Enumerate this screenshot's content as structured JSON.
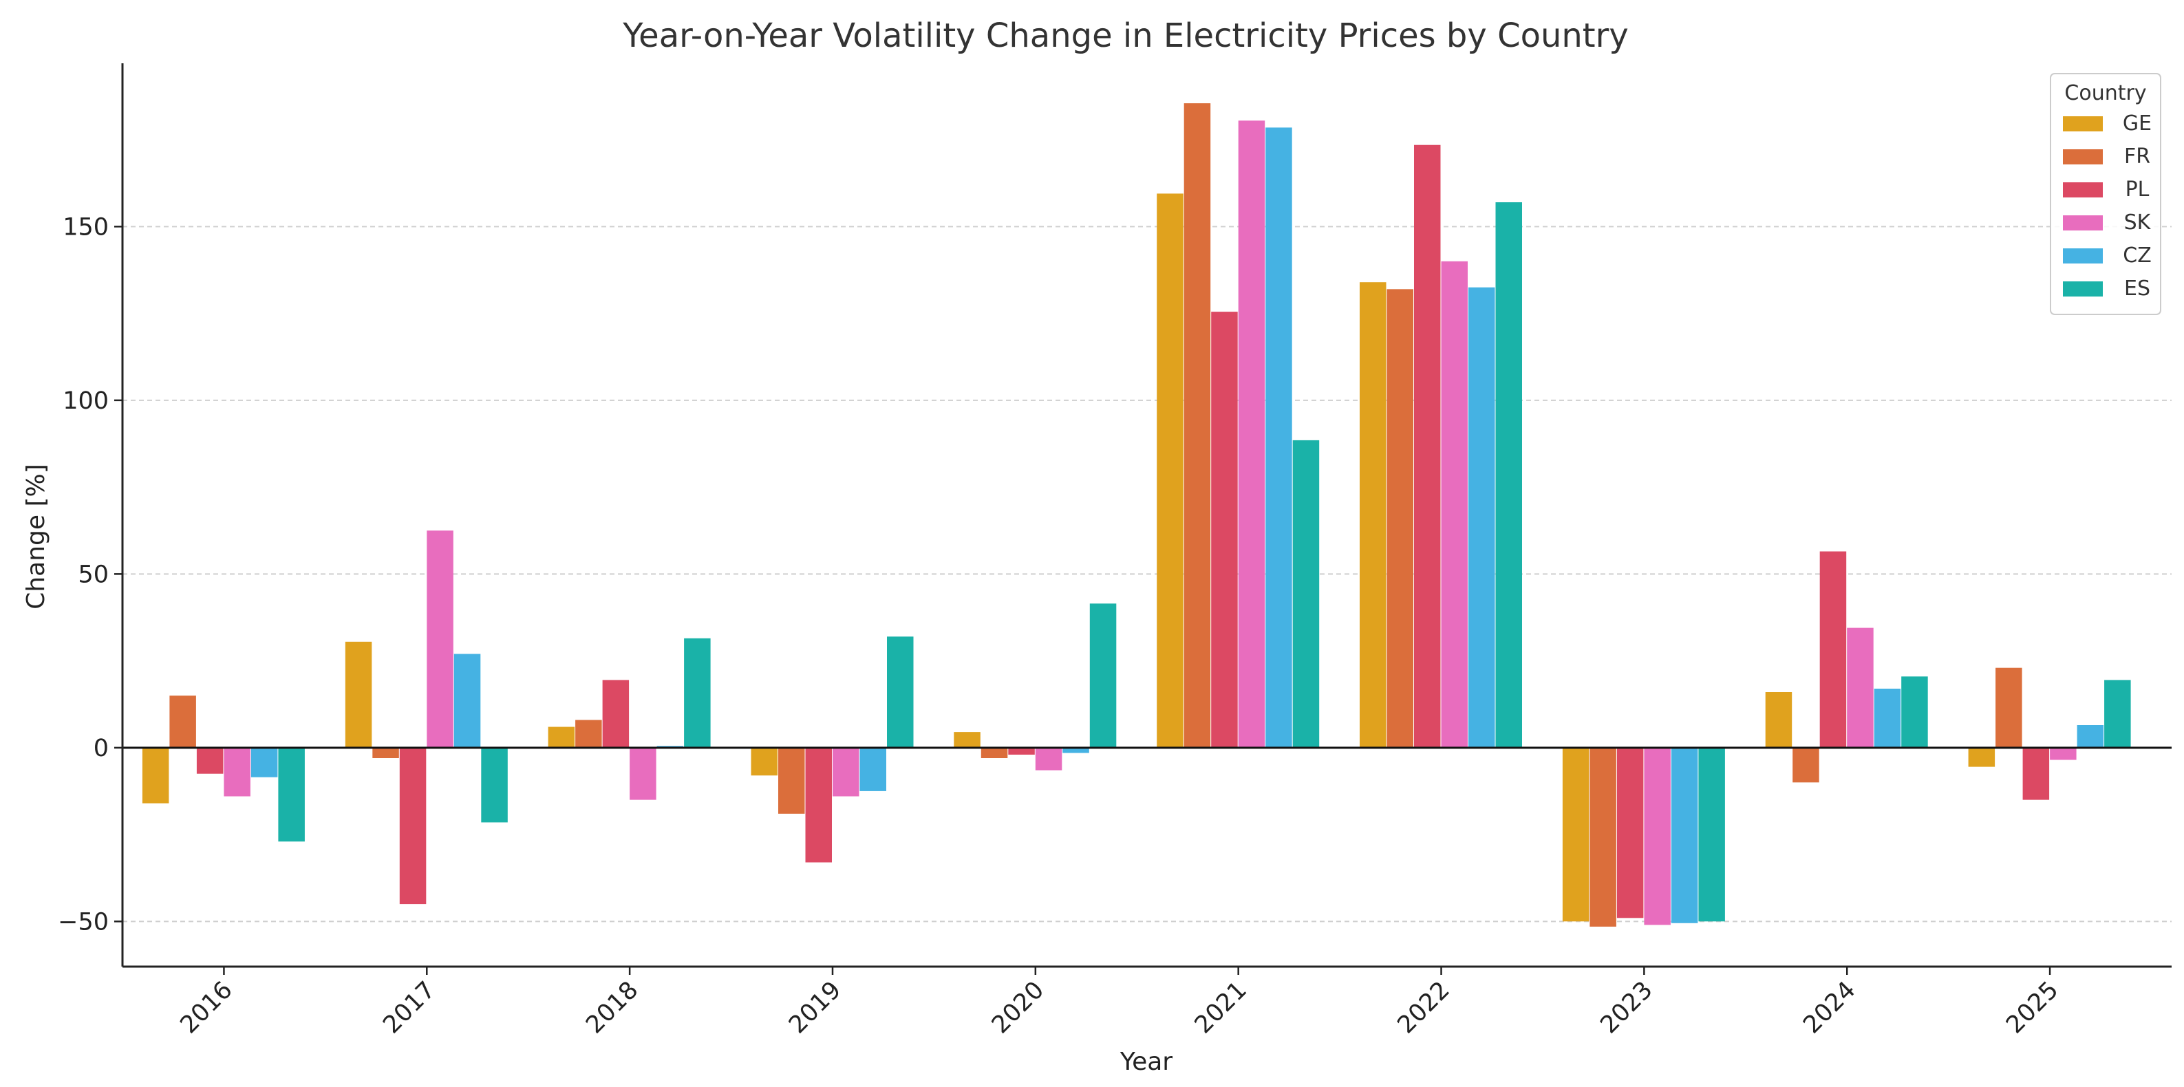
{
  "chart_data": {
    "type": "bar",
    "title": "Year-on-Year Volatility Change in Electricity Prices by Country",
    "xlabel": "Year",
    "ylabel": "Change [%]",
    "ylim": [
      -63,
      197
    ],
    "yticks": [
      -50,
      0,
      50,
      100,
      150
    ],
    "ytick_labels": [
      "−50",
      "0",
      "50",
      "100",
      "150"
    ],
    "grid": true,
    "legend_title": "Country",
    "legend_position": "top-right",
    "categories": [
      "2016",
      "2017",
      "2018",
      "2019",
      "2020",
      "2021",
      "2022",
      "2023",
      "2024",
      "2025"
    ],
    "series": [
      {
        "name": "GE",
        "color": "#E0A21E",
        "values": [
          -16,
          30.5,
          6,
          -8,
          4.5,
          159.5,
          134,
          -50,
          16,
          -5.5
        ]
      },
      {
        "name": "FR",
        "color": "#DB6E3B",
        "values": [
          15,
          -3,
          8,
          -19,
          -3,
          185.5,
          132,
          -51.5,
          -10,
          23
        ]
      },
      {
        "name": "PL",
        "color": "#DC4963",
        "values": [
          -7.5,
          -45,
          19.5,
          -33,
          -2,
          125.5,
          173.5,
          -49,
          56.5,
          -15
        ]
      },
      {
        "name": "SK",
        "color": "#E86DBE",
        "values": [
          -14,
          62.5,
          -15,
          -14,
          -6.5,
          180.5,
          140,
          -51,
          34.5,
          -3.5
        ]
      },
      {
        "name": "CZ",
        "color": "#45B2E3",
        "values": [
          -8.5,
          27,
          0.5,
          -12.5,
          -1.5,
          178.5,
          132.5,
          -50.5,
          17,
          6.5
        ]
      },
      {
        "name": "ES",
        "color": "#1AB2A8",
        "values": [
          -27,
          -21.5,
          31.5,
          32,
          41.5,
          88.5,
          157,
          -50,
          20.5,
          19.5
        ]
      }
    ]
  }
}
